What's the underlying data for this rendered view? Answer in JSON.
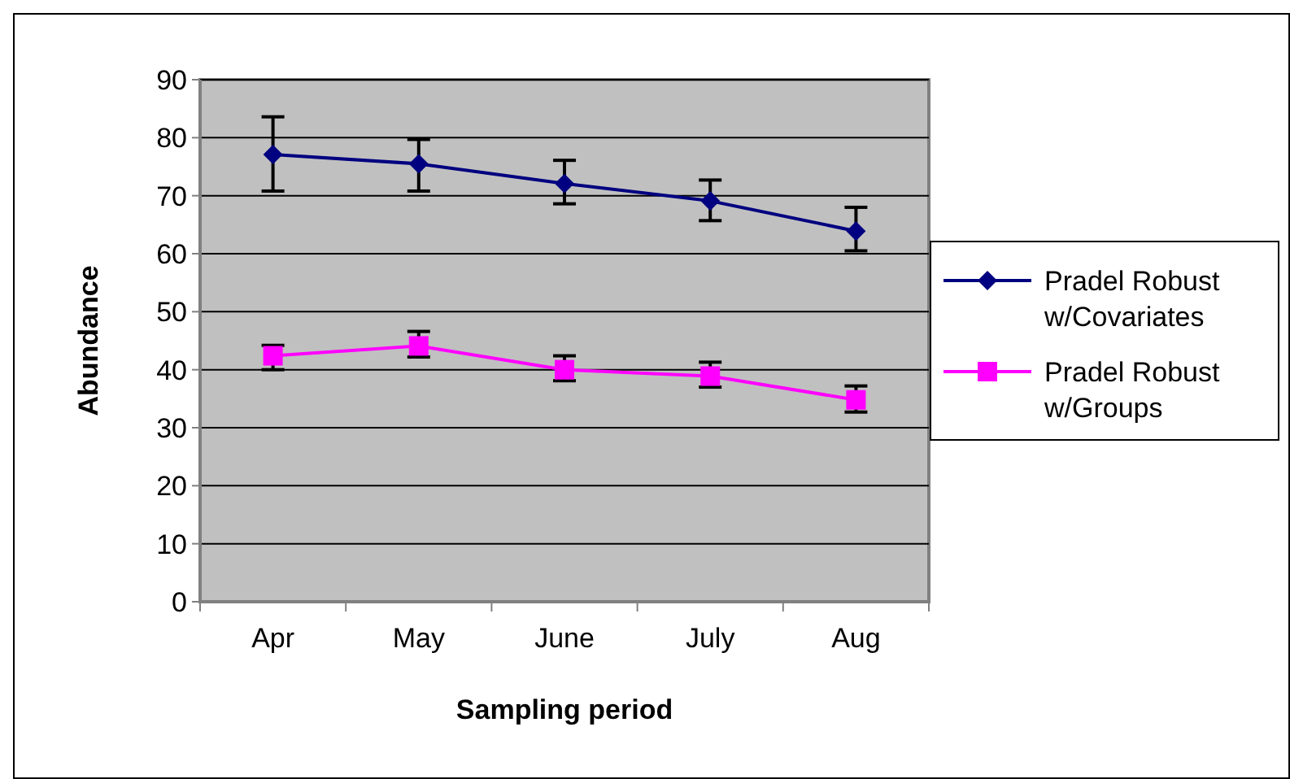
{
  "chart_data": {
    "type": "line",
    "xlabel": "Sampling period",
    "ylabel": "Abundance",
    "categories": [
      "Apr",
      "May",
      "June",
      "July",
      "Aug"
    ],
    "series": [
      {
        "name": "Pradel Robust w/Covariates",
        "color": "#000080",
        "marker": "diamond",
        "values": [
          77.1,
          75.5,
          72.1,
          69.1,
          63.9
        ],
        "errors": [
          [
            70.8,
            83.6
          ],
          [
            70.8,
            79.7
          ],
          [
            68.6,
            76.1
          ],
          [
            65.7,
            72.7
          ],
          [
            60.5,
            68.0
          ]
        ]
      },
      {
        "name": "Pradel Robust w/Groups",
        "color": "#ff00ff",
        "marker": "square",
        "values": [
          42.4,
          44.1,
          40.0,
          38.9,
          34.8
        ],
        "errors": [
          [
            40.0,
            44.2
          ],
          [
            42.2,
            46.6
          ],
          [
            38.1,
            42.4
          ],
          [
            37.0,
            41.3
          ],
          [
            32.7,
            37.2
          ]
        ]
      }
    ],
    "ylim": [
      0,
      90
    ],
    "yticks": [
      0,
      10,
      20,
      30,
      40,
      50,
      60,
      70,
      80,
      90
    ],
    "grid": "y",
    "legend": "right"
  }
}
